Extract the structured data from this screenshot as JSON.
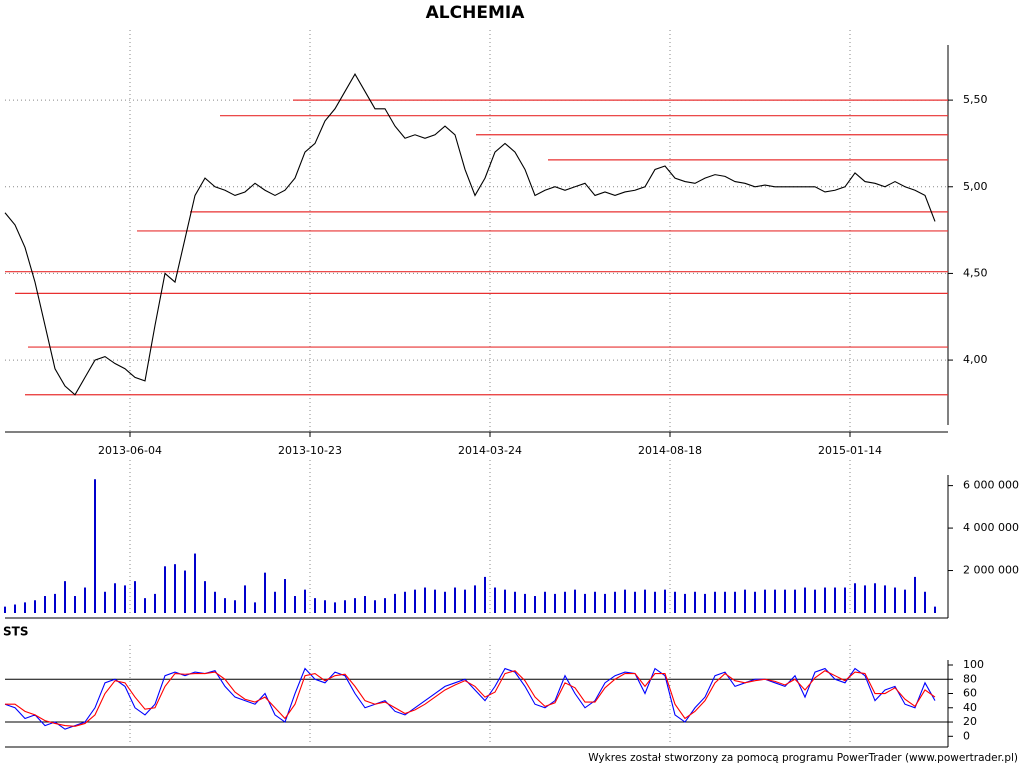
{
  "footer": "Wykres został stworzony za pomocą programu PowerTrader (www.powertrader.pl)",
  "chart_data": [
    {
      "type": "line",
      "title": "ALCHEMIA",
      "series": [
        {
          "color": "#000000",
          "values": [
            4.85,
            4.78,
            4.65,
            4.45,
            4.2,
            3.95,
            3.85,
            3.8,
            3.9,
            4.0,
            4.02,
            3.98,
            3.95,
            3.9,
            3.88,
            4.2,
            4.5,
            4.45,
            4.7,
            4.95,
            5.05,
            5.0,
            4.98,
            4.95,
            4.97,
            5.02,
            4.98,
            4.95,
            4.98,
            5.05,
            5.2,
            5.25,
            5.38,
            5.45,
            5.55,
            5.65,
            5.55,
            5.45,
            5.45,
            5.35,
            5.28,
            5.3,
            5.28,
            5.3,
            5.35,
            5.3,
            5.1,
            4.95,
            5.05,
            5.2,
            5.25,
            5.2,
            5.1,
            4.95,
            4.98,
            5.0,
            4.98,
            5.0,
            5.02,
            4.95,
            4.97,
            4.95,
            4.97,
            4.98,
            5.0,
            5.1,
            5.12,
            5.05,
            5.03,
            5.02,
            5.05,
            5.07,
            5.06,
            5.03,
            5.02,
            5.0,
            5.01,
            5.0,
            5.0,
            5.0,
            5.0,
            5.0,
            4.97,
            4.98,
            5.0,
            5.08,
            5.03,
            5.02,
            5.0,
            5.03,
            5.0,
            4.98,
            4.95,
            4.8
          ]
        }
      ],
      "levels": [
        {
          "value": 5.5,
          "start": 28.8
        },
        {
          "value": 5.41,
          "start": 21.5
        },
        {
          "value": 5.3,
          "start": 47.1
        },
        {
          "value": 5.155,
          "start": 54.3
        },
        {
          "value": 4.855,
          "start": 18.5
        },
        {
          "value": 4.745,
          "start": 13.2
        },
        {
          "value": 4.51,
          "start": 0
        },
        {
          "value": 4.385,
          "start": 1
        },
        {
          "value": 4.075,
          "start": 2.3
        },
        {
          "value": 3.8,
          "start": 2
        }
      ],
      "level_color": "#e83030",
      "xlim": [
        0,
        94
      ],
      "xticks": [
        {
          "value": 12.5,
          "label": "2013-06-04"
        },
        {
          "value": 30.5,
          "label": "2013-10-23"
        },
        {
          "value": 48.5,
          "label": "2014-03-24"
        },
        {
          "value": 66.5,
          "label": "2014-08-18"
        },
        {
          "value": 84.5,
          "label": "2015-01-14"
        }
      ],
      "ylim": [
        3.585,
        5.818
      ],
      "yticks": [
        {
          "value": 4.0,
          "label": "4,00"
        },
        {
          "value": 4.5,
          "label": "4,50"
        },
        {
          "value": 5.0,
          "label": "5,00"
        },
        {
          "value": 5.5,
          "label": "5,50"
        }
      ],
      "grid": true
    },
    {
      "type": "bar",
      "series": [
        {
          "color": "#0000cc",
          "values": [
            300000,
            400000,
            500000,
            600000,
            800000,
            900000,
            1500000,
            800000,
            1200000,
            6300000,
            1000000,
            1400000,
            1300000,
            1500000,
            700000,
            900000,
            2200000,
            2300000,
            2000000,
            2800000,
            1500000,
            1000000,
            700000,
            600000,
            1300000,
            500000,
            1900000,
            1000000,
            1600000,
            800000,
            1100000,
            700000,
            600000,
            500000,
            600000,
            700000,
            800000,
            600000,
            700000,
            900000,
            1000000,
            1100000,
            1200000,
            1100000,
            1000000,
            1200000,
            1100000,
            1300000,
            1700000,
            1200000,
            1100000,
            1000000,
            900000,
            800000,
            1000000,
            900000,
            1000000,
            1100000,
            900000,
            1000000,
            900000,
            1000000,
            1100000,
            1000000,
            1100000,
            1000000,
            1100000,
            1000000,
            900000,
            1000000,
            900000,
            1000000,
            1000000,
            1000000,
            1100000,
            1000000,
            1100000,
            1100000,
            1100000,
            1100000,
            1200000,
            1100000,
            1200000,
            1200000,
            1200000,
            1400000,
            1300000,
            1400000,
            1300000,
            1200000,
            1100000,
            1700000,
            1000000,
            300000
          ]
        }
      ],
      "xlim": [
        0,
        94
      ],
      "ylim": [
        0,
        6500000
      ],
      "yticks": [
        {
          "value": 2000000,
          "label": "2 000 000"
        },
        {
          "value": 4000000,
          "label": "4 000 000"
        },
        {
          "value": 6000000,
          "label": "6 000 000"
        }
      ]
    },
    {
      "type": "line",
      "title": "STS",
      "series": [
        {
          "color": "#0000ff",
          "values": [
            45,
            40,
            25,
            30,
            15,
            20,
            10,
            15,
            20,
            40,
            75,
            80,
            70,
            40,
            30,
            45,
            85,
            90,
            85,
            90,
            88,
            92,
            70,
            55,
            50,
            45,
            60,
            30,
            20,
            60,
            95,
            80,
            75,
            90,
            85,
            60,
            40,
            45,
            50,
            35,
            30,
            40,
            50,
            60,
            70,
            75,
            80,
            65,
            50,
            70,
            95,
            90,
            70,
            45,
            40,
            50,
            85,
            60,
            40,
            50,
            75,
            85,
            90,
            88,
            60,
            95,
            85,
            30,
            20,
            40,
            55,
            85,
            90,
            70,
            75,
            80,
            80,
            75,
            70,
            85,
            55,
            90,
            95,
            80,
            75,
            95,
            85,
            50,
            65,
            70,
            45,
            40,
            75,
            50
          ]
        },
        {
          "color": "#ff0000",
          "values": [
            45,
            45,
            35,
            30,
            22,
            18,
            15,
            14,
            18,
            30,
            60,
            78,
            75,
            55,
            38,
            40,
            70,
            88,
            87,
            88,
            88,
            90,
            80,
            62,
            52,
            48,
            55,
            40,
            25,
            45,
            85,
            88,
            78,
            85,
            87,
            70,
            50,
            45,
            48,
            40,
            32,
            37,
            45,
            55,
            65,
            72,
            78,
            70,
            55,
            62,
            88,
            92,
            78,
            55,
            42,
            47,
            75,
            68,
            48,
            48,
            68,
            80,
            88,
            88,
            70,
            88,
            88,
            45,
            25,
            35,
            50,
            75,
            88,
            78,
            75,
            78,
            80,
            77,
            72,
            80,
            65,
            82,
            92,
            85,
            78,
            90,
            88,
            60,
            60,
            68,
            52,
            42,
            65,
            55
          ]
        }
      ],
      "hlines": [
        20,
        80
      ],
      "xlim": [
        0,
        94
      ],
      "ylim": [
        -8,
        107
      ],
      "yticks": [
        0,
        20,
        40,
        60,
        80,
        100
      ]
    }
  ]
}
